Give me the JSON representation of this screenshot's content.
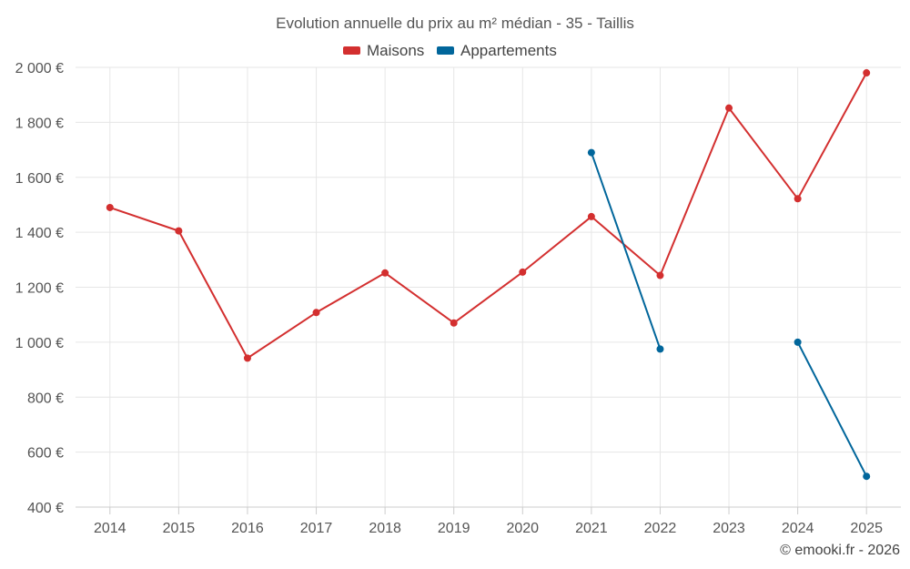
{
  "chart_data": {
    "type": "line",
    "title": "Evolution annuelle du prix au m² médian - 35 - Taillis",
    "categories": [
      "2014",
      "2015",
      "2016",
      "2017",
      "2018",
      "2019",
      "2020",
      "2021",
      "2022",
      "2023",
      "2024",
      "2025"
    ],
    "series": [
      {
        "name": "Maisons",
        "color": "#d32f2f",
        "values": [
          1490,
          1405,
          942,
          1108,
          1252,
          1070,
          1255,
          1457,
          1243,
          1852,
          1522,
          1980
        ]
      },
      {
        "name": "Appartements",
        "color": "#01669b",
        "values": [
          null,
          null,
          null,
          null,
          null,
          null,
          null,
          1690,
          975,
          null,
          1000,
          512
        ]
      }
    ],
    "ylim": [
      400,
      2000
    ],
    "yticks": [
      400,
      600,
      800,
      1000,
      1200,
      1400,
      1600,
      1800,
      2000
    ],
    "ytick_labels": [
      "400 €",
      "600 €",
      "800 €",
      "1 000 €",
      "1 200 €",
      "1 400 €",
      "1 600 €",
      "1 800 €",
      "2 000 €"
    ],
    "xlabel": "",
    "ylabel": "",
    "grid": true,
    "legend_position": "top-center"
  },
  "credit": "© emooki.fr - 2026"
}
